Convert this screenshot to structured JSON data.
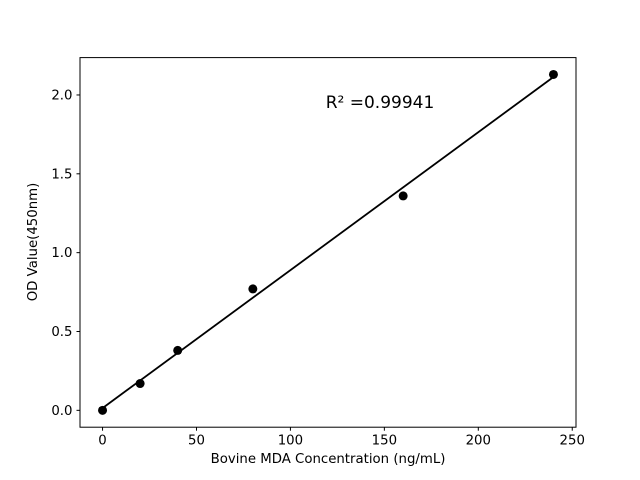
{
  "figure": {
    "background": "#ffffff"
  },
  "chart_data": {
    "type": "scatter",
    "title": "",
    "xlabel": "Bovine MDA Concentration (ng/mL)",
    "ylabel": "OD Value(450nm)",
    "annotation": "R² =0.99941",
    "x": [
      0,
      20,
      40,
      80,
      160,
      240
    ],
    "y": [
      0.0,
      0.17,
      0.38,
      0.77,
      1.36,
      2.13
    ],
    "fit_line": {
      "points": [
        [
          0,
          0.014
        ],
        [
          240,
          2.114
        ]
      ]
    },
    "x_ticks": {
      "values": [
        0,
        50,
        100,
        150,
        200,
        250
      ],
      "labels": [
        "0",
        "50",
        "100",
        "150",
        "200",
        "250"
      ]
    },
    "y_ticks": {
      "values": [
        0,
        0.5,
        1.0,
        1.5,
        2.0
      ],
      "labels": [
        "0.0",
        "0.5",
        "1.0",
        "1.5",
        "2.0"
      ]
    },
    "xlim": [
      -12,
      252
    ],
    "ylim": [
      -0.107,
      2.237
    ],
    "grid": false,
    "legend_position": "none",
    "marker_color": "#000000",
    "line_color": "#000000",
    "axis_color": "#000000"
  }
}
